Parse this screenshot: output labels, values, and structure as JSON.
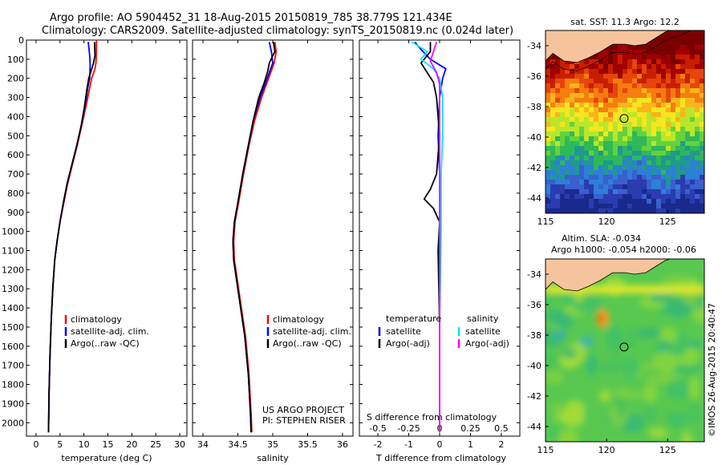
{
  "header": {
    "line1": "Argo profile: AO 5904452_31 18-Aug-2015 20150819_785 38.779S 121.434E",
    "line2": "Climatology: CARS2009. Satellite-adjusted climatology: synTS_20150819.nc (0.024d later)"
  },
  "credit": {
    "project": "US ARGO PROJECT",
    "pi": "PI: STEPHEN RISER",
    "imos": "©IMOS 26-Aug-2015 20:40:47"
  },
  "colors": {
    "climatology": "#ff0000",
    "satellite": "#0000ff",
    "argo": "#000000",
    "sal_satellite": "#00e5ff",
    "sal_argo": "#ff00ff",
    "land": "#f5c49c"
  },
  "chart_data": [
    {
      "type": "line",
      "ylabel": "",
      "xlabel": "temperature (deg C)",
      "xlim": [
        -2,
        31.5
      ],
      "ylim": [
        2070,
        0
      ],
      "xticks": [
        0,
        5,
        10,
        15,
        20,
        25,
        30
      ],
      "yticks": [
        0,
        100,
        200,
        300,
        400,
        500,
        600,
        700,
        800,
        900,
        1000,
        1100,
        1200,
        1300,
        1400,
        1500,
        1600,
        1700,
        1800,
        1900,
        2000
      ],
      "legend": [
        "climatology",
        "satellite-adj. clim.",
        "Argo(..raw -QC)"
      ],
      "series": [
        {
          "name": "climatology",
          "color": "#ff0000",
          "points": [
            [
              12.6,
              0
            ],
            [
              12.6,
              60
            ],
            [
              12.5,
              120
            ],
            [
              12.3,
              150
            ],
            [
              11.6,
              200
            ],
            [
              11.2,
              250
            ],
            [
              10.4,
              350
            ],
            [
              9.5,
              450
            ],
            [
              8.6,
              550
            ],
            [
              7.6,
              650
            ],
            [
              6.6,
              750
            ],
            [
              5.8,
              850
            ],
            [
              5.0,
              950
            ],
            [
              4.4,
              1050
            ],
            [
              3.9,
              1150
            ],
            [
              3.5,
              1300
            ],
            [
              3.2,
              1450
            ],
            [
              2.9,
              1650
            ],
            [
              2.7,
              1850
            ],
            [
              2.6,
              2050
            ]
          ]
        },
        {
          "name": "satellite-adj. clim.",
          "color": "#0000ff",
          "points": [
            [
              10.9,
              10
            ],
            [
              11.2,
              80
            ],
            [
              11.3,
              130
            ],
            [
              11.2,
              200
            ],
            [
              10.8,
              250
            ],
            [
              10.2,
              350
            ],
            [
              9.4,
              450
            ],
            [
              8.5,
              550
            ],
            [
              7.5,
              650
            ],
            [
              6.5,
              750
            ],
            [
              5.7,
              850
            ],
            [
              5.0,
              950
            ],
            [
              4.4,
              1050
            ],
            [
              3.9,
              1150
            ],
            [
              3.5,
              1300
            ],
            [
              3.2,
              1450
            ],
            [
              2.9,
              1650
            ],
            [
              2.7,
              1850
            ],
            [
              2.6,
              2050
            ]
          ]
        },
        {
          "name": "Argo(..raw -QC)",
          "color": "#000000",
          "points": [
            [
              12.2,
              10
            ],
            [
              12.3,
              80
            ],
            [
              12.0,
              120
            ],
            [
              11.5,
              160
            ],
            [
              11.0,
              200
            ],
            [
              10.6,
              260
            ],
            [
              10.1,
              350
            ],
            [
              9.4,
              450
            ],
            [
              8.5,
              550
            ],
            [
              7.5,
              650
            ],
            [
              6.5,
              750
            ],
            [
              5.7,
              850
            ],
            [
              5.0,
              950
            ],
            [
              4.4,
              1050
            ],
            [
              3.9,
              1150
            ],
            [
              3.5,
              1300
            ],
            [
              3.2,
              1450
            ],
            [
              2.9,
              1650
            ],
            [
              2.7,
              1850
            ],
            [
              2.6,
              2050
            ]
          ]
        }
      ]
    },
    {
      "type": "line",
      "xlabel": "salinity",
      "xlim": [
        33.85,
        36.15
      ],
      "ylim": [
        2070,
        0
      ],
      "xticks": [
        34,
        34.5,
        35,
        35.5,
        36
      ],
      "legend": [
        "climatology",
        "satellite-adj. clim.",
        "Argo(..raw -QC)"
      ],
      "series": [
        {
          "name": "climatology",
          "color": "#ff0000",
          "points": [
            [
              35.03,
              10
            ],
            [
              35.05,
              60
            ],
            [
              35.02,
              120
            ],
            [
              34.98,
              160
            ],
            [
              34.92,
              220
            ],
            [
              34.84,
              300
            ],
            [
              34.74,
              420
            ],
            [
              34.66,
              550
            ],
            [
              34.58,
              700
            ],
            [
              34.51,
              850
            ],
            [
              34.46,
              950
            ],
            [
              34.44,
              1050
            ],
            [
              34.45,
              1150
            ],
            [
              34.49,
              1250
            ],
            [
              34.55,
              1400
            ],
            [
              34.61,
              1550
            ],
            [
              34.66,
              1750
            ],
            [
              34.69,
              1950
            ],
            [
              34.7,
              2050
            ]
          ]
        },
        {
          "name": "satellite-adj. clim.",
          "color": "#0000ff",
          "points": [
            [
              34.95,
              10
            ],
            [
              34.98,
              60
            ],
            [
              35.0,
              120
            ],
            [
              34.96,
              160
            ],
            [
              34.9,
              220
            ],
            [
              34.82,
              300
            ],
            [
              34.72,
              420
            ],
            [
              34.65,
              550
            ],
            [
              34.57,
              700
            ],
            [
              34.5,
              850
            ],
            [
              34.45,
              950
            ],
            [
              34.43,
              1050
            ],
            [
              34.44,
              1150
            ],
            [
              34.48,
              1250
            ],
            [
              34.54,
              1400
            ],
            [
              34.6,
              1550
            ],
            [
              34.65,
              1750
            ],
            [
              34.68,
              1950
            ],
            [
              34.69,
              2050
            ]
          ]
        },
        {
          "name": "Argo(..raw -QC)",
          "color": "#000000",
          "points": [
            [
              35.01,
              10
            ],
            [
              35.03,
              60
            ],
            [
              34.95,
              120
            ],
            [
              34.93,
              160
            ],
            [
              34.88,
              220
            ],
            [
              34.8,
              300
            ],
            [
              34.72,
              420
            ],
            [
              34.65,
              550
            ],
            [
              34.57,
              700
            ],
            [
              34.5,
              850
            ],
            [
              34.45,
              950
            ],
            [
              34.43,
              1050
            ],
            [
              34.44,
              1150
            ],
            [
              34.48,
              1250
            ],
            [
              34.54,
              1400
            ],
            [
              34.6,
              1550
            ],
            [
              34.65,
              1750
            ],
            [
              34.68,
              1950
            ],
            [
              34.69,
              2050
            ]
          ]
        }
      ]
    },
    {
      "type": "line",
      "xlabel": "T difference from climatology",
      "xlabel2": "S difference from climatology",
      "xlim": [
        -2.6,
        2.6
      ],
      "ylim": [
        2070,
        0
      ],
      "xticks": [
        -2,
        -1,
        0,
        1,
        2
      ],
      "xticks2": [
        {
          "label": "-0.5",
          "pos": -2.0
        },
        {
          "label": "-0.25",
          "pos": -1.0
        },
        {
          "label": "0",
          "pos": 0
        },
        {
          "label": "0.25",
          "pos": 1.0
        },
        {
          "label": "0.5",
          "pos": 2.0
        }
      ],
      "legend_groups": [
        {
          "title": "temperature",
          "items": [
            "satellite",
            "Argo(-adj)"
          ]
        },
        {
          "title": "salinity",
          "items": [
            "satellite",
            "Argo(-adj)"
          ]
        }
      ],
      "series": [
        {
          "name": "satellite",
          "group": "temperature",
          "color": "#0000ff",
          "points": [
            [
              -0.8,
              10
            ],
            [
              -0.6,
              50
            ],
            [
              -0.3,
              100
            ],
            [
              0.2,
              150
            ],
            [
              0.1,
              200
            ],
            [
              0,
              300
            ],
            [
              -0.05,
              500
            ],
            [
              0,
              700
            ],
            [
              0,
              1000
            ],
            [
              0,
              1500
            ],
            [
              0,
              2050
            ]
          ]
        },
        {
          "name": "Argo(-adj)",
          "group": "temperature",
          "color": "#000000",
          "points": [
            [
              -0.3,
              10
            ],
            [
              -0.3,
              60
            ],
            [
              -0.6,
              120
            ],
            [
              -0.4,
              170
            ],
            [
              -0.2,
              220
            ],
            [
              -0.1,
              300
            ],
            [
              0,
              500
            ],
            [
              -0.1,
              700
            ],
            [
              -0.3,
              780
            ],
            [
              -0.5,
              830
            ],
            [
              -0.2,
              880
            ],
            [
              0,
              950
            ],
            [
              -0.05,
              1100
            ],
            [
              0,
              1500
            ],
            [
              0,
              2050
            ]
          ]
        },
        {
          "name": "satellite",
          "group": "salinity",
          "color": "#00e5ff",
          "points": [
            [
              -0.9,
              10
            ],
            [
              -0.4,
              60
            ],
            [
              -0.6,
              100
            ],
            [
              -0.2,
              150
            ],
            [
              0,
              200
            ],
            [
              0.1,
              300
            ],
            [
              0.1,
              500
            ],
            [
              0.05,
              700
            ],
            [
              0.05,
              1000
            ],
            [
              0,
              1500
            ],
            [
              0,
              2050
            ]
          ]
        },
        {
          "name": "Argo(-adj)",
          "group": "salinity",
          "color": "#ff00ff",
          "points": [
            [
              -0.1,
              10
            ],
            [
              -0.2,
              60
            ],
            [
              -0.3,
              110
            ],
            [
              -0.1,
              170
            ],
            [
              0,
              230
            ],
            [
              0,
              400
            ],
            [
              0,
              800
            ],
            [
              0,
              1200
            ],
            [
              0,
              2050
            ]
          ]
        }
      ]
    },
    {
      "type": "heatmap",
      "title": "sat. SST: 11.3 Argo: 12.2",
      "xlim": [
        115,
        128
      ],
      "ylim": [
        -45,
        -33
      ],
      "xticks": [
        115,
        120,
        125
      ],
      "yticks": [
        -34,
        -36,
        -38,
        -40,
        -42,
        -44
      ],
      "marker": {
        "x": 121.434,
        "y": -38.779
      }
    },
    {
      "type": "heatmap",
      "title": "Altim. SLA: -0.034",
      "subtitle": "Argo h1000: -0.054 h2000: -0.06",
      "xlim": [
        115,
        128
      ],
      "ylim": [
        -45,
        -33
      ],
      "xticks": [
        115,
        120,
        125
      ],
      "yticks": [
        -34,
        -36,
        -38,
        -40,
        -42,
        -44
      ],
      "marker": {
        "x": 121.434,
        "y": -38.779
      }
    }
  ]
}
